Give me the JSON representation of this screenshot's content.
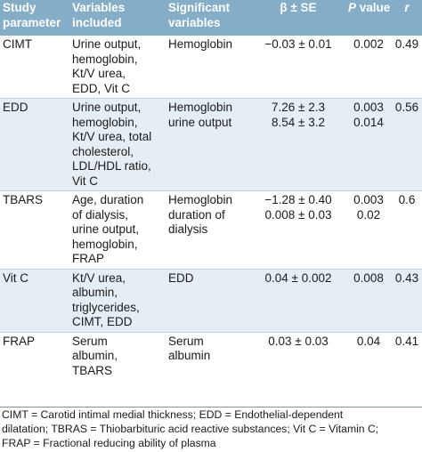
{
  "headers": [
    [
      "Study",
      "parameter"
    ],
    [
      "Variables",
      "included"
    ],
    [
      "Significant",
      "variables"
    ],
    [
      "β ± SE"
    ],
    [
      "value"
    ],
    [
      "r"
    ]
  ],
  "p_letter": "P",
  "rows": [
    {
      "parameter": [
        "CIMT"
      ],
      "variables": [
        "Urine output,",
        "hemoglobin,",
        "Kt/V urea,",
        "EDD, Vit C"
      ],
      "significant": [
        "Hemoglobin"
      ],
      "beta": [
        "−0.03 ± 0.01"
      ],
      "p": [
        "0.002"
      ],
      "r": [
        "0.49"
      ]
    },
    {
      "parameter": [
        "EDD"
      ],
      "variables": [
        "Urine output,",
        "hemoglobin,",
        "Kt/V urea, total",
        "cholesterol,",
        "LDL/HDL ratio,",
        "Vit C"
      ],
      "significant": [
        "Hemoglobin",
        "urine output"
      ],
      "beta": [
        "7.26 ± 2.3",
        "8.54 ± 3.2"
      ],
      "p": [
        "0.003",
        "0.014"
      ],
      "r": [
        "0.56"
      ]
    },
    {
      "parameter": [
        "TBARS"
      ],
      "variables": [
        "Age, duration",
        "of dialysis,",
        "urine output,",
        "hemoglobin,",
        "FRAP"
      ],
      "significant": [
        "Hemoglobin",
        "duration of",
        "dialysis"
      ],
      "beta": [
        "−1.28 ± 0.40",
        "0.008 ± 0.03"
      ],
      "p": [
        "0.003",
        "0.02"
      ],
      "r": [
        "0.6"
      ]
    },
    {
      "parameter": [
        "Vit C"
      ],
      "variables": [
        "Kt/V urea,",
        "albumin,",
        "triglycerides,",
        "CIMT, EDD"
      ],
      "significant": [
        "EDD"
      ],
      "beta": [
        "0.04 ± 0.002"
      ],
      "p": [
        "0.008"
      ],
      "r": [
        "0.43"
      ]
    },
    {
      "parameter": [
        "FRAP"
      ],
      "variables": [
        "Serum",
        "albumin,",
        "TBARS"
      ],
      "significant": [
        "Serum",
        "albumin"
      ],
      "beta": [
        "0.03 ± 0.03"
      ],
      "p": [
        "0.04"
      ],
      "r": [
        "0.41"
      ]
    }
  ],
  "footnote": [
    "CIMT = Carotid intimal medial thickness; EDD = Endothelial-dependent",
    "dilatation; TBRAS = Thiobarbituric acid reactive substances; Vit C = Vitamin C;",
    "FRAP = Fractional reducing ability of plasma"
  ],
  "colors": {
    "header_bg": "#84adc7",
    "header_text": "#ffffff",
    "stripe_bg": "#e6eef5"
  }
}
